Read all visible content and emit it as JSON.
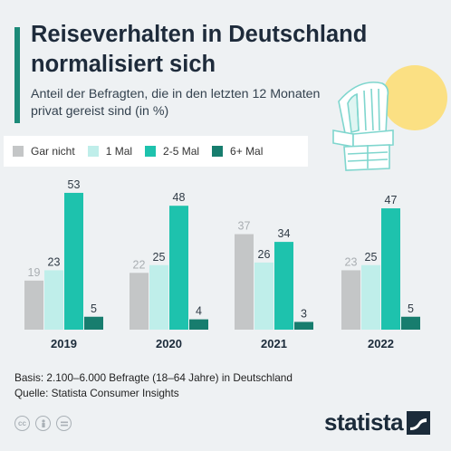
{
  "header": {
    "title": "Reiseverhalten in Deutschland normalisiert sich",
    "subtitle": "Anteil der Befragten, die in den letzten 12 Monaten privat gereist sind (in %)"
  },
  "legend": [
    {
      "label": "Gar nicht",
      "color": "#c4c6c7"
    },
    {
      "label": "1 Mal",
      "color": "#bfeeea"
    },
    {
      "label": "2-5 Mal",
      "color": "#1ec2ad"
    },
    {
      "label": "6+ Mal",
      "color": "#177d6e"
    }
  ],
  "chart_data": {
    "type": "bar",
    "categories": [
      "2019",
      "2020",
      "2021",
      "2022"
    ],
    "series": [
      {
        "name": "Gar nicht",
        "values": [
          19,
          22,
          37,
          23
        ],
        "color": "#c4c6c7"
      },
      {
        "name": "1 Mal",
        "values": [
          23,
          25,
          26,
          25
        ],
        "color": "#bfeeea"
      },
      {
        "name": "2-5 Mal",
        "values": [
          53,
          48,
          34,
          47
        ],
        "color": "#1ec2ad"
      },
      {
        "name": "6+ Mal",
        "values": [
          5,
          4,
          3,
          5
        ],
        "color": "#177d6e"
      }
    ],
    "title": "Reiseverhalten in Deutschland normalisiert sich",
    "ylim": [
      0,
      55
    ],
    "grid": false,
    "legend_position": "top-left"
  },
  "footer": {
    "basis": "Basis: 2.100–6.000 Befragte (18–64 Jahre) in Deutschland",
    "source": "Quelle: Statista Consumer Insights"
  },
  "license_icons": [
    "cc-icon",
    "person-icon",
    "equals-icon"
  ],
  "brand": {
    "name": "statista",
    "icon": "statista-logo-icon"
  }
}
